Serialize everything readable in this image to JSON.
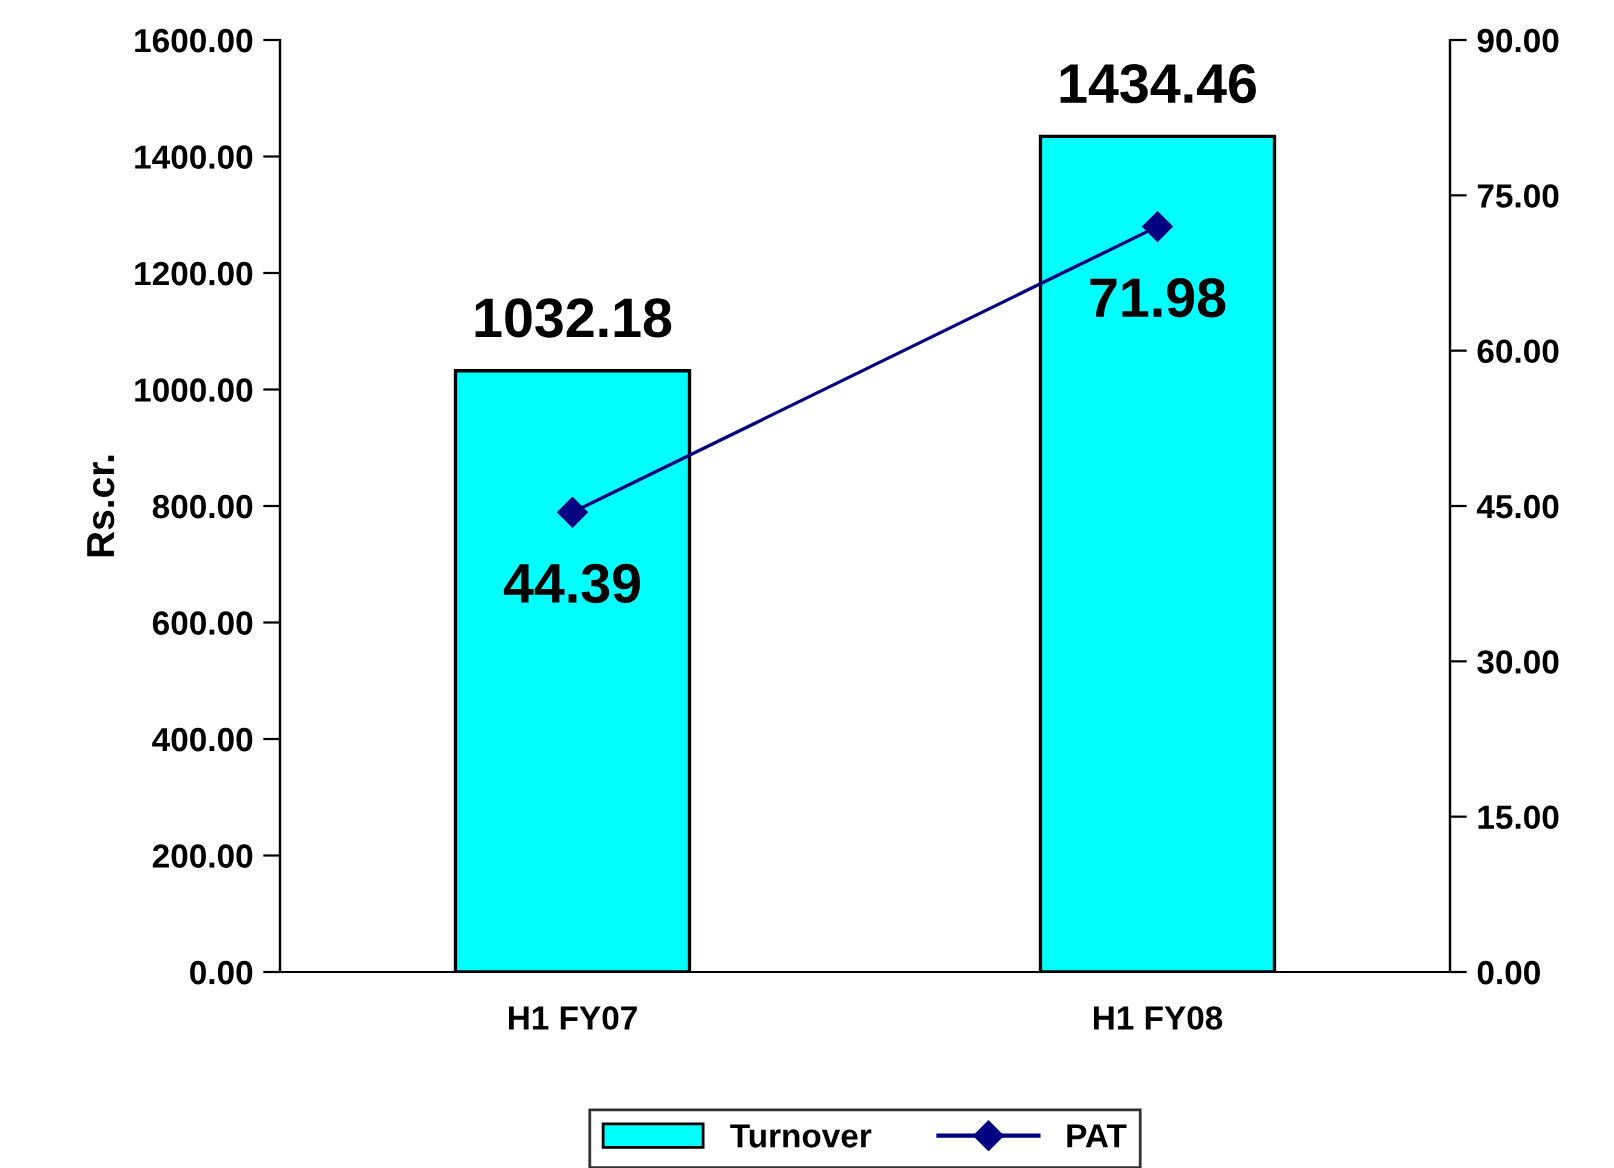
{
  "chart_data": {
    "type": "bar",
    "categories": [
      "H1 FY07",
      "H1 FY08"
    ],
    "ylabel": "Rs.cr.",
    "series": [
      {
        "name": "Turnover",
        "color": "#00ffff",
        "values": [
          1032.18,
          1434.46
        ]
      },
      {
        "name": "PAT",
        "type": "line",
        "axis": "y2",
        "color": "#000080",
        "values": [
          44.39,
          71.98
        ],
        "marker": "diamond"
      }
    ],
    "ylim": [
      0,
      1600
    ],
    "yticks": [
      {
        "value": 0,
        "label": "0.00"
      },
      {
        "value": 200,
        "label": "200.00"
      },
      {
        "value": 400,
        "label": "400.00"
      },
      {
        "value": 600,
        "label": "600.00"
      },
      {
        "value": 800,
        "label": "800.00"
      },
      {
        "value": 1000,
        "label": "1000.00"
      },
      {
        "value": 1200,
        "label": "1200.00"
      },
      {
        "value": 1400,
        "label": "1400.00"
      },
      {
        "value": 1600,
        "label": "1600.00"
      }
    ],
    "y2lim": [
      0,
      90
    ],
    "y2ticks": [
      {
        "value": 0,
        "label": "0.00"
      },
      {
        "value": 15,
        "label": "15.00"
      },
      {
        "value": 30,
        "label": "30.00"
      },
      {
        "value": 45,
        "label": "45.00"
      },
      {
        "value": 60,
        "label": "60.00"
      },
      {
        "value": 75,
        "label": "75.00"
      },
      {
        "value": 90,
        "label": "90.00"
      }
    ],
    "data_labels": true,
    "legend": "bottom",
    "grid": false
  }
}
